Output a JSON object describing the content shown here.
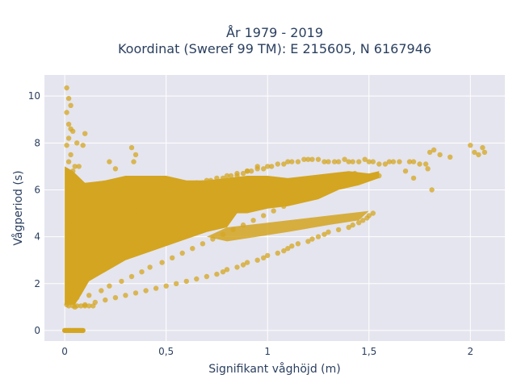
{
  "chart_data": {
    "type": "scatter",
    "title_line1": "År 1979 - 2019",
    "title_line2": "Koordinat (Sweref 99 TM): E 215605, N 6167946",
    "xlabel": "Signifikant våghöjd (m)",
    "ylabel": "Vågperiod (s)",
    "xlim": [
      -0.1,
      2.17
    ],
    "ylim": [
      -0.45,
      10.9
    ],
    "x_ticks": [
      {
        "value": 0,
        "label": "0"
      },
      {
        "value": 0.5,
        "label": "0,5"
      },
      {
        "value": 1,
        "label": "1"
      },
      {
        "value": 1.5,
        "label": "1,5"
      },
      {
        "value": 2,
        "label": "2"
      }
    ],
    "y_ticks": [
      {
        "value": 0,
        "label": "0"
      },
      {
        "value": 2,
        "label": "2"
      },
      {
        "value": 4,
        "label": "4"
      },
      {
        "value": 6,
        "label": "6"
      },
      {
        "value": 8,
        "label": "8"
      },
      {
        "value": 10,
        "label": "10"
      }
    ],
    "grid": true,
    "legend": "none",
    "marker_color": "#d4a520",
    "series": [
      {
        "x": [
          0.01,
          0.02,
          0.03,
          0.01,
          0.02,
          0.03,
          0.04,
          0.02,
          0.01,
          0.03,
          0.02,
          0.05,
          0.04,
          0.03,
          0.02,
          0.06,
          0.03,
          0.02,
          0.04,
          0.07,
          0.05,
          0.08,
          0.03,
          0.02,
          0.05,
          0.04,
          0.06,
          0.07,
          0.09,
          0.02,
          0.03,
          0.04,
          0.05,
          0.06,
          0.07,
          0.08,
          0.03,
          0.04,
          0.05,
          0.06,
          0.02,
          0.01,
          0.03,
          0.04,
          0.05,
          0.06,
          0.08,
          0.09,
          0.1,
          0.12,
          0.14,
          0.16,
          0.18,
          0.2,
          0.22,
          0.24,
          0.26,
          0.28,
          0.3,
          0.32,
          0.34,
          0.36,
          0.38,
          0.4,
          0.42,
          0.44,
          0.46,
          0.48,
          0.5,
          0.52,
          0.55,
          0.58,
          0.6,
          0.62,
          0.65,
          0.68,
          0.7,
          0.72,
          0.75,
          0.78,
          0.8,
          0.82,
          0.85,
          0.88,
          0.9,
          0.92,
          0.95,
          0.98,
          1.0,
          1.02,
          1.05,
          1.08,
          1.1,
          1.12,
          1.15,
          1.18,
          1.2,
          1.22,
          1.25,
          1.28,
          1.3,
          1.33,
          1.35,
          1.38,
          1.4,
          1.42,
          1.45,
          1.48,
          1.5,
          1.52,
          1.55,
          1.58,
          1.6,
          1.62,
          1.65,
          1.7,
          1.72,
          1.75,
          1.78,
          1.8,
          1.82,
          1.85,
          1.9,
          2.0,
          2.02,
          2.04,
          2.06,
          2.07,
          1.79,
          1.81,
          1.72,
          1.68,
          1.55,
          1.52,
          1.5,
          1.49,
          1.47,
          1.45,
          1.42,
          1.4,
          1.35,
          1.3,
          1.28,
          1.25,
          1.22,
          1.2,
          1.15,
          1.12,
          1.1,
          1.08,
          1.05,
          1.0,
          0.98,
          0.95,
          0.9,
          0.88,
          0.85,
          0.8,
          0.78,
          0.75,
          0.7,
          0.65,
          0.6,
          0.55,
          0.5,
          0.45,
          0.4,
          0.35,
          0.3,
          0.25,
          0.2,
          0.15,
          0.1,
          0.05,
          0.12,
          0.18,
          0.22,
          0.28,
          0.33,
          0.38,
          0.42,
          0.48,
          0.53,
          0.58,
          0.63,
          0.68,
          0.73,
          0.78,
          0.83,
          0.88,
          0.93,
          0.98,
          1.03,
          1.08,
          1.13,
          1.18,
          1.23,
          1.28,
          1.33,
          1.38,
          1.43,
          0.08,
          0.1,
          0.12,
          0.15,
          0.18,
          0.2,
          0.25,
          0.3,
          0.35,
          0.4,
          0.45,
          0.5,
          0.55,
          0.6,
          0.65,
          0.7,
          0.75,
          0.8,
          0.85,
          0.9,
          0.95,
          1.0,
          1.05,
          1.1,
          1.15,
          1.2,
          1.25,
          1.3,
          1.35,
          1.4,
          0.33,
          0.35,
          0.34,
          0.22,
          0.25,
          0.1,
          0.09,
          0.06,
          0.07,
          0.03,
          0.0,
          0.01,
          0.02,
          0.03,
          0.04,
          0.05,
          0.06,
          0.07,
          0.08,
          0.09,
          0.02,
          0.04,
          0.06,
          0.08,
          0.1,
          0.12,
          0.14
        ],
        "y": [
          10.35,
          9.9,
          9.6,
          9.3,
          8.8,
          8.6,
          8.5,
          8.2,
          7.9,
          7.5,
          7.2,
          7.0,
          6.8,
          6.6,
          6.4,
          6.2,
          6.0,
          5.8,
          5.6,
          5.4,
          5.2,
          5.0,
          4.8,
          4.6,
          4.4,
          4.2,
          4.0,
          3.8,
          3.6,
          3.4,
          3.2,
          3.0,
          2.8,
          2.6,
          2.4,
          2.2,
          2.0,
          1.8,
          1.6,
          1.4,
          1.2,
          1.1,
          1.3,
          1.5,
          1.7,
          1.9,
          2.1,
          2.3,
          2.5,
          2.7,
          2.9,
          3.1,
          3.3,
          3.5,
          3.7,
          3.9,
          4.1,
          4.3,
          4.5,
          4.7,
          4.9,
          5.1,
          5.3,
          5.5,
          5.6,
          5.7,
          5.8,
          5.9,
          6.0,
          6.0,
          6.1,
          6.1,
          6.2,
          6.2,
          6.3,
          6.3,
          6.4,
          6.4,
          6.5,
          6.5,
          6.6,
          6.6,
          6.7,
          6.7,
          6.8,
          6.8,
          6.9,
          6.9,
          7.0,
          7.0,
          7.1,
          7.1,
          7.2,
          7.2,
          7.2,
          7.3,
          7.3,
          7.3,
          7.3,
          7.2,
          7.2,
          7.2,
          7.2,
          7.3,
          7.2,
          7.2,
          7.2,
          7.3,
          7.2,
          7.2,
          7.1,
          7.1,
          7.2,
          7.2,
          7.2,
          7.2,
          7.2,
          7.1,
          7.1,
          7.6,
          7.7,
          7.5,
          7.4,
          7.9,
          7.6,
          7.5,
          7.8,
          7.6,
          6.9,
          6.0,
          6.5,
          6.8,
          6.6,
          5.0,
          4.9,
          4.8,
          4.7,
          4.6,
          4.5,
          4.4,
          4.3,
          4.2,
          4.1,
          4.0,
          3.9,
          3.8,
          3.7,
          3.6,
          3.5,
          3.4,
          3.3,
          3.2,
          3.1,
          3.0,
          2.9,
          2.8,
          2.7,
          2.6,
          2.5,
          2.4,
          2.3,
          2.2,
          2.1,
          2.0,
          1.9,
          1.8,
          1.7,
          1.6,
          1.5,
          1.4,
          1.3,
          1.2,
          1.1,
          1.0,
          1.5,
          1.7,
          1.9,
          2.1,
          2.3,
          2.5,
          2.7,
          2.9,
          3.1,
          3.3,
          3.5,
          3.7,
          3.9,
          4.1,
          4.3,
          4.5,
          4.7,
          4.9,
          5.1,
          5.3,
          5.5,
          5.7,
          5.9,
          6.1,
          6.3,
          6.5,
          6.7,
          3.0,
          3.2,
          3.4,
          3.6,
          3.8,
          4.0,
          4.2,
          4.4,
          4.6,
          4.8,
          5.0,
          5.2,
          5.4,
          5.6,
          5.8,
          6.0,
          6.2,
          6.4,
          6.6,
          6.8,
          7.0,
          5.5,
          5.6,
          5.7,
          5.8,
          5.9,
          6.0,
          6.1,
          6.2,
          6.3,
          7.8,
          7.5,
          7.2,
          7.2,
          6.9,
          8.4,
          7.9,
          8.0,
          7.0,
          6.5,
          0.0,
          0.0,
          0.0,
          0.0,
          0.0,
          0.0,
          0.0,
          0.0,
          0.0,
          0.0,
          1.05,
          1.05,
          1.05,
          1.05,
          1.05,
          1.05,
          1.05
        ]
      }
    ]
  }
}
